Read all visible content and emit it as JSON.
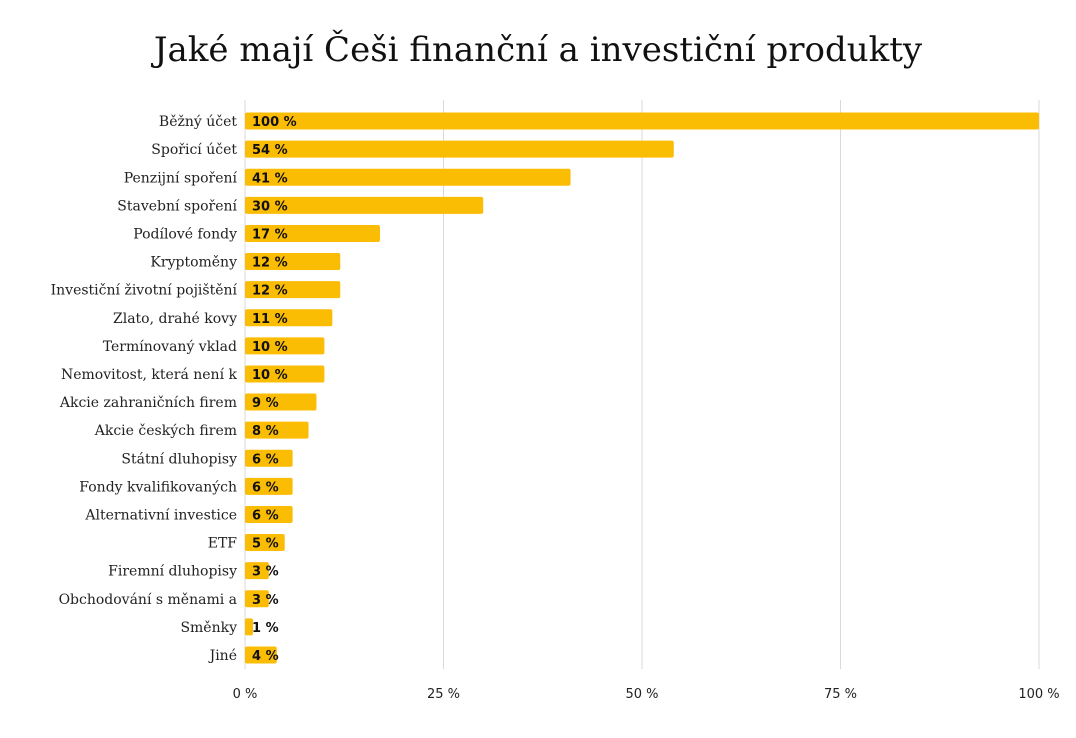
{
  "chart_data": {
    "type": "bar",
    "orientation": "horizontal",
    "title": "Jaké mají Češi finanční a investiční produkty",
    "categories": [
      "Běžný účet",
      "Spořicí účet",
      "Penzijní spoření",
      "Stavební spoření",
      "Podílové fondy",
      "Kryptoměny",
      "Investiční životní pojištění",
      "Zlato, drahé kovy",
      "Termínovaný vklad",
      "Nemovitost, která není k",
      "Akcie zahraničních firem",
      "Akcie českých firem",
      "Státní dluhopisy",
      "Fondy kvalifikovaných",
      "Alternativní investice",
      "ETF",
      "Firemní dluhopisy",
      "Obchodování s měnami a",
      "Směnky",
      "Jiné"
    ],
    "values": [
      100,
      54,
      41,
      30,
      17,
      12,
      12,
      11,
      10,
      10,
      9,
      8,
      6,
      6,
      6,
      5,
      3,
      3,
      1,
      4
    ],
    "value_labels": [
      "100 %",
      "54 %",
      "41 %",
      "30 %",
      "17 %",
      "12 %",
      "12 %",
      "11 %",
      "10 %",
      "10 %",
      "9 %",
      "8 %",
      "6 %",
      "6 %",
      "6 %",
      "5 %",
      "3 %",
      "3 %",
      "1 %",
      "4 %"
    ],
    "xlim": [
      0,
      100
    ],
    "xticks": [
      0,
      25,
      50,
      75,
      100
    ],
    "xtick_labels": [
      "0 %",
      "25 %",
      "50 %",
      "75 %",
      "100 %"
    ],
    "grid": true,
    "bar_color": "#FBBC04"
  }
}
